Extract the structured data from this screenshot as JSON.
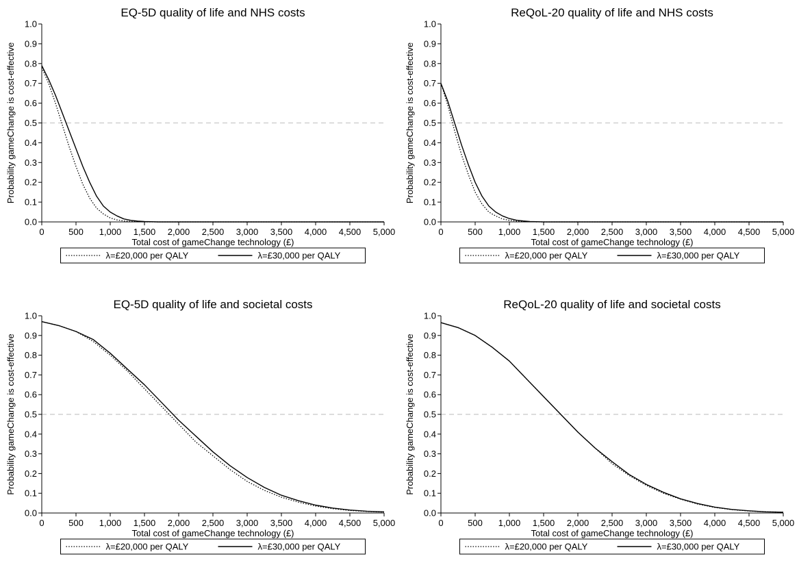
{
  "chart_data": [
    {
      "type": "line",
      "title": "EQ-5D quality of life and NHS costs",
      "xlabel": "Total cost of gameChange technology (£)",
      "ylabel": "Probability gameChange is cost-effective",
      "xlim": [
        0,
        5000
      ],
      "ylim": [
        0,
        1
      ],
      "x_ticks": [
        "0",
        "500",
        "1,000",
        "1,500",
        "2,000",
        "2,500",
        "3,000",
        "3,500",
        "4,000",
        "4,500",
        "5,000"
      ],
      "y_ticks": [
        "0.0",
        "0.1",
        "0.2",
        "0.3",
        "0.4",
        "0.5",
        "0.6",
        "0.7",
        "0.8",
        "0.9",
        "1.0"
      ],
      "reference_line": 0.5,
      "grid": false,
      "legend_position": "bottom",
      "series": [
        {
          "name": "λ=£20,000 per QALY",
          "style": "dotted",
          "x": [
            0,
            100,
            200,
            300,
            400,
            500,
            600,
            700,
            800,
            900,
            1000,
            1100,
            1200,
            1300,
            1400,
            1500,
            1700,
            2000,
            5000
          ],
          "y": [
            0.78,
            0.7,
            0.6,
            0.49,
            0.38,
            0.28,
            0.19,
            0.12,
            0.07,
            0.04,
            0.02,
            0.01,
            0.005,
            0.002,
            0.001,
            0,
            0,
            0,
            0
          ]
        },
        {
          "name": "λ=£30,000 per QALY",
          "style": "solid",
          "x": [
            0,
            100,
            200,
            300,
            400,
            500,
            600,
            700,
            800,
            900,
            1000,
            1100,
            1200,
            1300,
            1400,
            1500,
            1700,
            2000,
            5000
          ],
          "y": [
            0.79,
            0.72,
            0.64,
            0.55,
            0.46,
            0.37,
            0.28,
            0.2,
            0.13,
            0.08,
            0.05,
            0.03,
            0.015,
            0.008,
            0.004,
            0.002,
            0,
            0,
            0
          ]
        }
      ]
    },
    {
      "type": "line",
      "title": "ReQoL-20 quality of life and NHS costs",
      "xlabel": "Total cost of gameChange technology (£)",
      "ylabel": "Probability gameChange is cost-effective",
      "xlim": [
        0,
        5000
      ],
      "ylim": [
        0,
        1
      ],
      "x_ticks": [
        "0",
        "500",
        "1,000",
        "1,500",
        "2,000",
        "2,500",
        "3,000",
        "3,500",
        "4,000",
        "4,500",
        "5,000"
      ],
      "y_ticks": [
        "0.0",
        "0.1",
        "0.2",
        "0.3",
        "0.4",
        "0.5",
        "0.6",
        "0.7",
        "0.8",
        "0.9",
        "1.0"
      ],
      "reference_line": 0.5,
      "grid": false,
      "legend_position": "bottom",
      "series": [
        {
          "name": "λ=£20,000 per QALY",
          "style": "dotted",
          "x": [
            0,
            100,
            200,
            300,
            400,
            500,
            600,
            700,
            800,
            900,
            1000,
            1100,
            1200,
            1300,
            1400,
            1500,
            1700,
            2000,
            5000
          ],
          "y": [
            0.7,
            0.59,
            0.46,
            0.34,
            0.24,
            0.15,
            0.09,
            0.05,
            0.03,
            0.015,
            0.008,
            0.004,
            0.002,
            0.001,
            0,
            0,
            0,
            0,
            0
          ]
        },
        {
          "name": "λ=£30,000 per QALY",
          "style": "solid",
          "x": [
            0,
            100,
            200,
            300,
            400,
            500,
            600,
            700,
            800,
            900,
            1000,
            1100,
            1200,
            1300,
            1400,
            1500,
            1700,
            2000,
            5000
          ],
          "y": [
            0.7,
            0.61,
            0.5,
            0.39,
            0.29,
            0.2,
            0.13,
            0.08,
            0.05,
            0.03,
            0.017,
            0.009,
            0.005,
            0.002,
            0.001,
            0,
            0,
            0,
            0
          ]
        }
      ]
    },
    {
      "type": "line",
      "title": "EQ-5D quality of life and societal costs",
      "xlabel": "Total cost of gameChange technology (£)",
      "ylabel": "Probability gameChange is cost-effective",
      "xlim": [
        0,
        5000
      ],
      "ylim": [
        0,
        1
      ],
      "x_ticks": [
        "0",
        "500",
        "1,000",
        "1,500",
        "2,000",
        "2,500",
        "3,000",
        "3,500",
        "4,000",
        "4,500",
        "5,000"
      ],
      "y_ticks": [
        "0.0",
        "0.1",
        "0.2",
        "0.3",
        "0.4",
        "0.5",
        "0.6",
        "0.7",
        "0.8",
        "0.9",
        "1.0"
      ],
      "reference_line": 0.5,
      "grid": false,
      "legend_position": "bottom",
      "series": [
        {
          "name": "λ=£20,000 per QALY",
          "style": "dotted",
          "x": [
            0,
            250,
            500,
            750,
            1000,
            1250,
            1500,
            1750,
            2000,
            2250,
            2500,
            2750,
            3000,
            3250,
            3500,
            3750,
            4000,
            4250,
            4500,
            4750,
            5000
          ],
          "y": [
            0.97,
            0.95,
            0.92,
            0.87,
            0.8,
            0.72,
            0.63,
            0.54,
            0.45,
            0.36,
            0.29,
            0.22,
            0.16,
            0.115,
            0.08,
            0.055,
            0.035,
            0.022,
            0.013,
            0.008,
            0.005
          ]
        },
        {
          "name": "λ=£30,000 per QALY",
          "style": "solid",
          "x": [
            0,
            250,
            500,
            750,
            1000,
            1250,
            1500,
            1750,
            2000,
            2250,
            2500,
            2750,
            3000,
            3250,
            3500,
            3750,
            4000,
            4250,
            4500,
            4750,
            5000
          ],
          "y": [
            0.97,
            0.95,
            0.92,
            0.88,
            0.81,
            0.73,
            0.65,
            0.56,
            0.47,
            0.39,
            0.31,
            0.24,
            0.18,
            0.13,
            0.09,
            0.062,
            0.04,
            0.025,
            0.015,
            0.009,
            0.006
          ]
        }
      ]
    },
    {
      "type": "line",
      "title": "ReQoL-20 quality of life and societal costs",
      "xlabel": "Total cost of gameChange technology (£)",
      "ylabel": "Probability gameChange is cost-effective",
      "xlim": [
        0,
        5000
      ],
      "ylim": [
        0,
        1
      ],
      "x_ticks": [
        "0",
        "500",
        "1,000",
        "1,500",
        "2,000",
        "2,500",
        "3,000",
        "3,500",
        "4,000",
        "4,500",
        "5,000"
      ],
      "y_ticks": [
        "0.0",
        "0.1",
        "0.2",
        "0.3",
        "0.4",
        "0.5",
        "0.6",
        "0.7",
        "0.8",
        "0.9",
        "1.0"
      ],
      "reference_line": 0.5,
      "grid": false,
      "legend_position": "bottom",
      "series": [
        {
          "name": "λ=£20,000 per QALY",
          "style": "dotted",
          "x": [
            0,
            250,
            500,
            750,
            1000,
            1250,
            1500,
            1750,
            2000,
            2250,
            2500,
            2750,
            3000,
            3250,
            3500,
            3750,
            4000,
            4250,
            4500,
            4750,
            5000
          ],
          "y": [
            0.965,
            0.94,
            0.9,
            0.84,
            0.77,
            0.68,
            0.59,
            0.5,
            0.41,
            0.33,
            0.25,
            0.19,
            0.14,
            0.1,
            0.07,
            0.045,
            0.028,
            0.017,
            0.01,
            0.006,
            0.004
          ]
        },
        {
          "name": "λ=£30,000 per QALY",
          "style": "solid",
          "x": [
            0,
            250,
            500,
            750,
            1000,
            1250,
            1500,
            1750,
            2000,
            2250,
            2500,
            2750,
            3000,
            3250,
            3500,
            3750,
            4000,
            4250,
            4500,
            4750,
            5000
          ],
          "y": [
            0.965,
            0.94,
            0.9,
            0.84,
            0.77,
            0.68,
            0.59,
            0.5,
            0.41,
            0.33,
            0.26,
            0.195,
            0.145,
            0.105,
            0.072,
            0.048,
            0.03,
            0.018,
            0.011,
            0.006,
            0.004
          ]
        }
      ]
    }
  ]
}
